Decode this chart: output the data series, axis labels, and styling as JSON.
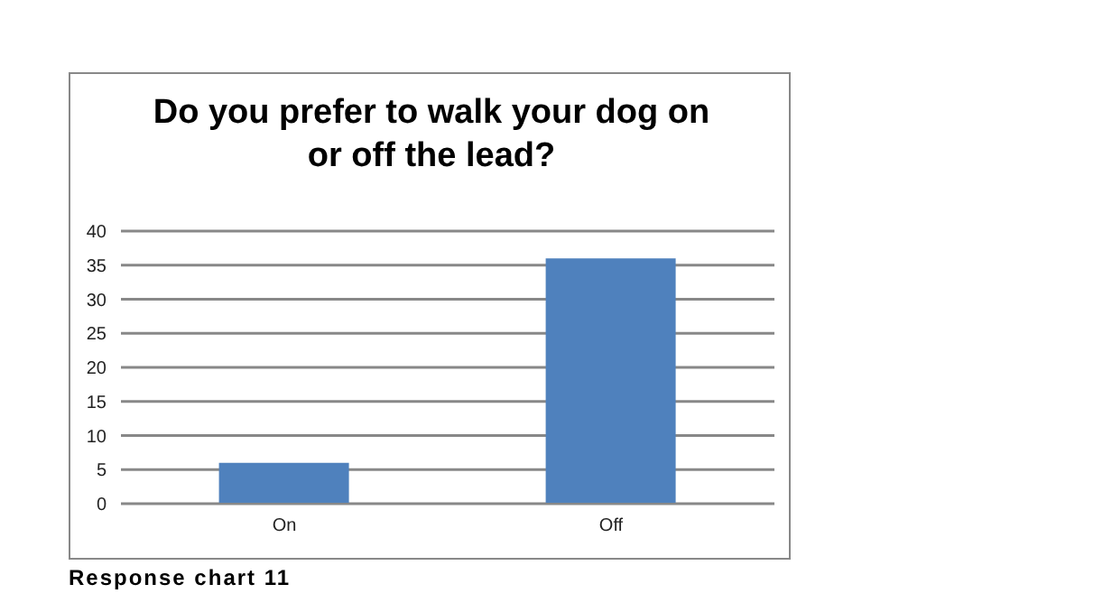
{
  "chart_data": {
    "type": "bar",
    "title": "Do you prefer to walk your dog on or off the lead?",
    "categories": [
      "On",
      "Off"
    ],
    "values": [
      6,
      36
    ],
    "color": "#4f81bd",
    "ylim": [
      0,
      40
    ],
    "yticks": [
      0,
      5,
      10,
      15,
      20,
      25,
      30,
      35,
      40
    ],
    "grid": "y",
    "annotations": [
      "Response chart 11"
    ]
  }
}
